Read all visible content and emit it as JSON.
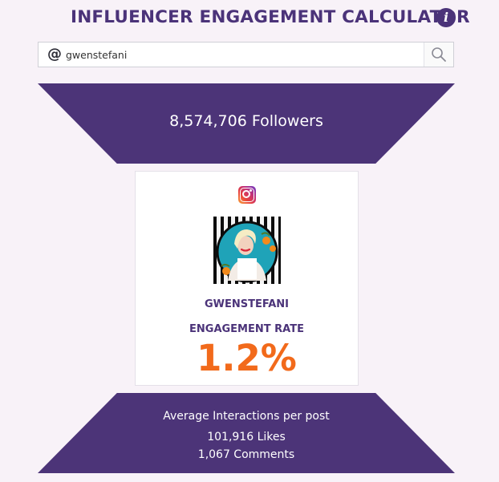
{
  "header": {
    "title": "INFLUENCER ENGAGEMENT CALCULATOR",
    "info_icon": "i"
  },
  "search": {
    "prefix": "@",
    "value": "gwenstefani",
    "placeholder": ""
  },
  "stats": {
    "followers": "8,574,706 Followers"
  },
  "profile": {
    "platform_icon": "instagram-icon",
    "username": "GWENSTEFANI",
    "engagement_label": "ENGAGEMENT RATE",
    "engagement_rate": "1.2%"
  },
  "interactions": {
    "label": "Average Interactions per post",
    "likes": "101,916 Likes",
    "comments": "1,067 Comments"
  },
  "colors": {
    "brand_purple": "#4b3379",
    "accent_orange": "#f26a1b",
    "background": "#f8f2f8"
  }
}
